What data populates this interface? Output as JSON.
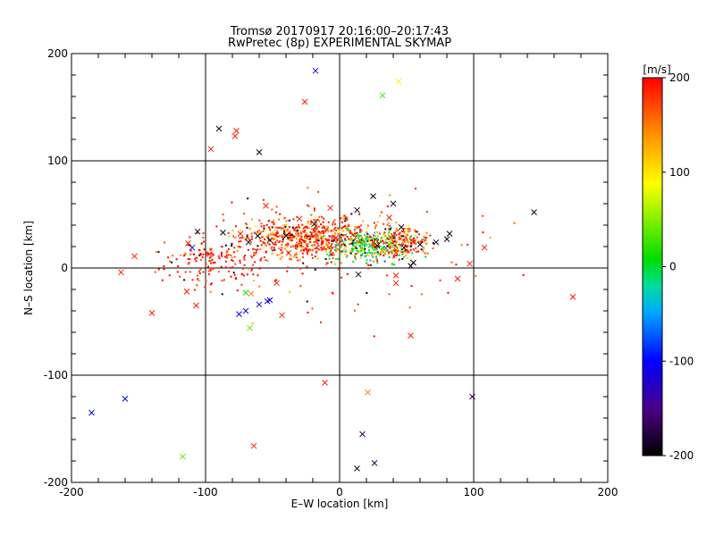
{
  "chart_data": {
    "type": "scatter",
    "title": "Tromsø 20170917 20:16:00–20:17:43",
    "subtitle": "RwPretec (8p) EXPERIMENTAL SKYMAP",
    "xlabel": "E–W location [km]",
    "ylabel": "N–S location [km]",
    "xlim": [
      -200,
      200
    ],
    "ylim": [
      -200,
      200
    ],
    "xticks": [
      -200,
      -100,
      0,
      100,
      200
    ],
    "yticks": [
      -200,
      -100,
      0,
      100,
      200
    ],
    "grid": true,
    "colorbar": {
      "label": "[m/s]",
      "range": [
        -200,
        200
      ],
      "ticks": [
        200,
        100,
        0,
        -100,
        -200
      ],
      "colors": [
        "#000000",
        "#4b0082",
        "#0000ff",
        "#00aaff",
        "#00dd99",
        "#00dd00",
        "#ffff00",
        "#ff8800",
        "#ff0000"
      ]
    },
    "markers": [
      {
        "x": -18,
        "y": 184,
        "v": -110
      },
      {
        "x": 44,
        "y": 174,
        "v": 95
      },
      {
        "x": 32,
        "y": 161,
        "v": 30
      },
      {
        "x": -26,
        "y": 155,
        "v": 190
      },
      {
        "x": -90,
        "y": 130,
        "v": -190
      },
      {
        "x": -77,
        "y": 128,
        "v": 190
      },
      {
        "x": -78,
        "y": 123,
        "v": 190
      },
      {
        "x": -96,
        "y": 111,
        "v": 190
      },
      {
        "x": -60,
        "y": 108,
        "v": -190
      },
      {
        "x": -87,
        "y": 33,
        "v": -190
      },
      {
        "x": -106,
        "y": 34,
        "v": -190
      },
      {
        "x": -113,
        "y": 23,
        "v": 190
      },
      {
        "x": -110,
        "y": 19,
        "v": -110
      },
      {
        "x": -153,
        "y": 11,
        "v": 190
      },
      {
        "x": -163,
        "y": -4,
        "v": 190
      },
      {
        "x": -97,
        "y": 13,
        "v": 190
      },
      {
        "x": -61,
        "y": 30,
        "v": -190
      },
      {
        "x": -52,
        "y": 26,
        "v": -190
      },
      {
        "x": -55,
        "y": 58,
        "v": 190
      },
      {
        "x": -74,
        "y": 32,
        "v": 190
      },
      {
        "x": -68,
        "y": 24,
        "v": -190
      },
      {
        "x": -40,
        "y": 30,
        "v": -190
      },
      {
        "x": -38,
        "y": 14,
        "v": 190
      },
      {
        "x": -30,
        "y": 46,
        "v": 190
      },
      {
        "x": -19,
        "y": 41,
        "v": -190
      },
      {
        "x": -10,
        "y": 36,
        "v": 190
      },
      {
        "x": -3,
        "y": 28,
        "v": 190
      },
      {
        "x": 10,
        "y": 31,
        "v": 190
      },
      {
        "x": 25,
        "y": 24,
        "v": 190
      },
      {
        "x": 28,
        "y": 21,
        "v": -190
      },
      {
        "x": 40,
        "y": 30,
        "v": 190
      },
      {
        "x": 46,
        "y": 38,
        "v": -190
      },
      {
        "x": 48,
        "y": 19,
        "v": -190
      },
      {
        "x": 55,
        "y": 24,
        "v": 190
      },
      {
        "x": 60,
        "y": 22,
        "v": -190
      },
      {
        "x": 72,
        "y": 24,
        "v": -190
      },
      {
        "x": 82,
        "y": 32,
        "v": -190
      },
      {
        "x": 80,
        "y": 27,
        "v": -190
      },
      {
        "x": 25,
        "y": 67,
        "v": -190
      },
      {
        "x": 40,
        "y": 60,
        "v": -190
      },
      {
        "x": 13,
        "y": 54,
        "v": -190
      },
      {
        "x": -7,
        "y": 56,
        "v": 190
      },
      {
        "x": 37,
        "y": 47,
        "v": 190
      },
      {
        "x": 55,
        "y": 5,
        "v": -190
      },
      {
        "x": 53,
        "y": 2,
        "v": -190
      },
      {
        "x": 42,
        "y": -7,
        "v": 190
      },
      {
        "x": 14,
        "y": -6,
        "v": -190
      },
      {
        "x": 42,
        "y": 14,
        "v": 190
      },
      {
        "x": 97,
        "y": 4,
        "v": 190
      },
      {
        "x": 88,
        "y": -10,
        "v": 190
      },
      {
        "x": 145,
        "y": 52,
        "v": -190
      },
      {
        "x": 108,
        "y": 19,
        "v": 190
      },
      {
        "x": 174,
        "y": -27,
        "v": 190
      },
      {
        "x": 53,
        "y": -63,
        "v": 190
      },
      {
        "x": 42,
        "y": -14,
        "v": 190
      },
      {
        "x": -47,
        "y": -14,
        "v": 190
      },
      {
        "x": -66,
        "y": -24,
        "v": 150
      },
      {
        "x": -70,
        "y": -23,
        "v": 20
      },
      {
        "x": -70,
        "y": -40,
        "v": -110
      },
      {
        "x": -75,
        "y": -43,
        "v": -110
      },
      {
        "x": -60,
        "y": -34,
        "v": -110
      },
      {
        "x": -54,
        "y": -31,
        "v": -110
      },
      {
        "x": -52,
        "y": -30,
        "v": -110
      },
      {
        "x": -67,
        "y": -56,
        "v": 40
      },
      {
        "x": -107,
        "y": -35,
        "v": 190
      },
      {
        "x": -114,
        "y": -22,
        "v": 190
      },
      {
        "x": -140,
        "y": -42,
        "v": 190
      },
      {
        "x": -43,
        "y": -44,
        "v": 190
      },
      {
        "x": -11,
        "y": -107,
        "v": 190
      },
      {
        "x": 21,
        "y": -116,
        "v": 150
      },
      {
        "x": 99,
        "y": -120,
        "v": -160
      },
      {
        "x": -160,
        "y": -122,
        "v": -100
      },
      {
        "x": -185,
        "y": -135,
        "v": -100
      },
      {
        "x": -117,
        "y": -176,
        "v": 40
      },
      {
        "x": -64,
        "y": -166,
        "v": 190
      },
      {
        "x": 17,
        "y": -155,
        "v": -170
      },
      {
        "x": 26,
        "y": -182,
        "v": -170
      },
      {
        "x": 13,
        "y": -187,
        "v": -190
      }
    ]
  }
}
